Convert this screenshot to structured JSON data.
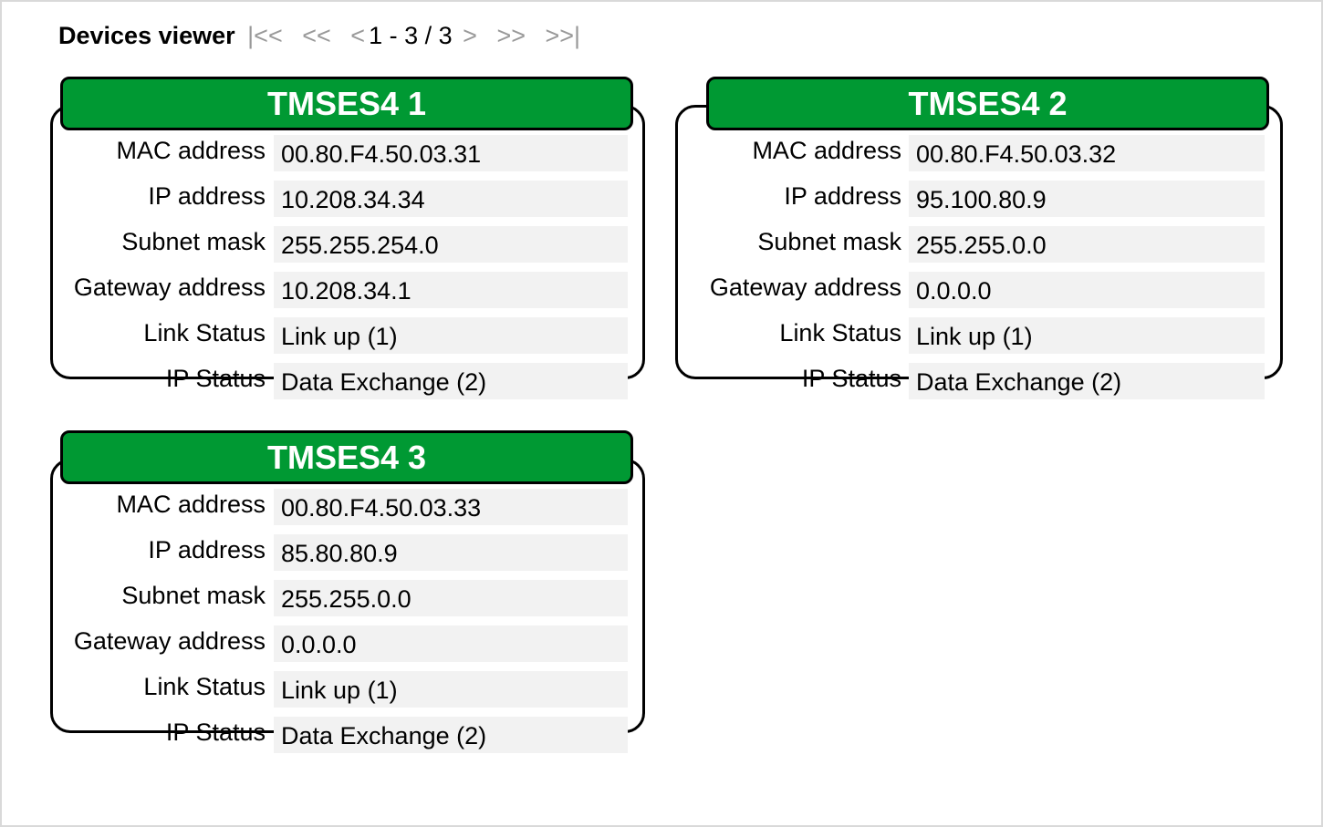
{
  "title": "Devices viewer",
  "pager": {
    "first": "|<<",
    "prev_page": "<<",
    "prev": "<",
    "range": "1 - 3 / 3",
    "next": ">",
    "next_page": ">>",
    "last": ">>|"
  },
  "labels": [
    "MAC address",
    "IP address",
    "Subnet mask",
    "Gateway address",
    "Link Status",
    "IP Status"
  ],
  "accent": "#009933",
  "devices": [
    {
      "name": "TMSES4 1",
      "values": [
        "00.80.F4.50.03.31",
        "10.208.34.34",
        "255.255.254.0",
        "10.208.34.1",
        "Link up (1)",
        "Data Exchange (2)"
      ]
    },
    {
      "name": "TMSES4 2",
      "values": [
        "00.80.F4.50.03.32",
        "95.100.80.9",
        "255.255.0.0",
        "0.0.0.0",
        "Link up (1)",
        "Data Exchange (2)"
      ]
    },
    {
      "name": "TMSES4 3",
      "values": [
        "00.80.F4.50.03.33",
        "85.80.80.9",
        "255.255.0.0",
        "0.0.0.0",
        "Link up (1)",
        "Data Exchange (2)"
      ]
    }
  ]
}
